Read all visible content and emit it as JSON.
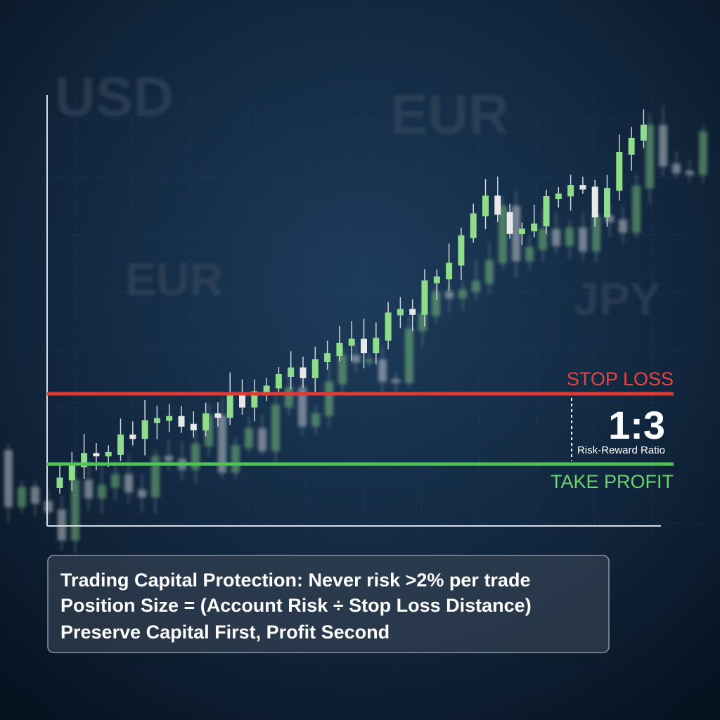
{
  "background_labels": [
    "USD",
    "EUR",
    "EUR",
    "JPY"
  ],
  "stop_loss": "STOP LOSS",
  "take_profit": "TAKE PROFIT",
  "ratio": {
    "value": "1:3",
    "label": "Risk-Reward Ratio"
  },
  "caption": {
    "lines": [
      "Trading Capital Protection: Never risk >2% per trade",
      "Position Size = (Account Risk ÷ Stop Loss Distance)",
      "Preserve Capital First, Profit Second"
    ]
  }
}
